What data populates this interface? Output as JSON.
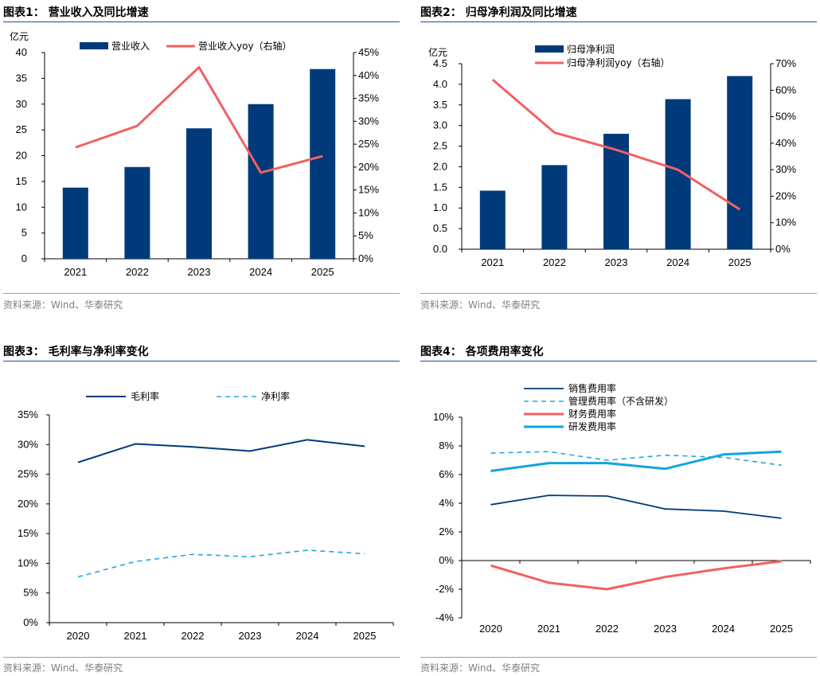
{
  "colors": {
    "navy": "#003a7a",
    "red": "#f26061",
    "light_blue": "#11a5de",
    "dashed_blue": "#20a6e0",
    "title_rule": "#1f4e8c",
    "source_rule": "#8aa3c4",
    "axis": "#000000",
    "source_text": "#7f7f7f"
  },
  "panels": [
    {
      "title": "图表1： 营业收入及同比增速",
      "source": "资料来源：Wind、华泰研究"
    },
    {
      "title": "图表2： 归母净利润及同比增速",
      "source": "资料来源：Wind、华泰研究"
    },
    {
      "title": "图表3： 毛利率与净利率变化",
      "source": "资料来源：Wind、华泰研究"
    },
    {
      "title": "图表4： 各项费用率变化",
      "source": "资料来源：Wind、华泰研究"
    }
  ],
  "chart_data": [
    {
      "type": "bar+line",
      "title": "营业收入及同比增速",
      "unit_label": "亿元",
      "categories": [
        "2021",
        "2022",
        "2023",
        "2024",
        "2025"
      ],
      "series": [
        {
          "name": "营业收入",
          "type": "bar",
          "axis": "left",
          "values": [
            13.8,
            17.8,
            25.3,
            30.0,
            36.8
          ]
        },
        {
          "name": "营业收入yoy（右轴）",
          "type": "line",
          "axis": "right",
          "values": [
            24.3,
            29.0,
            41.8,
            18.8,
            22.4
          ]
        }
      ],
      "ylim": [
        0,
        40
      ],
      "yticks": [
        "0",
        "5",
        "10",
        "15",
        "20",
        "25",
        "30",
        "35",
        "40"
      ],
      "y2lim": [
        0,
        45
      ],
      "y2ticks": [
        "0%",
        "5%",
        "10%",
        "15%",
        "20%",
        "25%",
        "30%",
        "35%",
        "40%",
        "45%"
      ],
      "legend": "top"
    },
    {
      "type": "bar+line",
      "title": "归母净利润及同比增速",
      "unit_label": "亿元",
      "categories": [
        "2021",
        "2022",
        "2023",
        "2024",
        "2025"
      ],
      "series": [
        {
          "name": "归母净利润",
          "type": "bar",
          "axis": "left",
          "values": [
            1.42,
            2.04,
            2.8,
            3.64,
            4.2
          ]
        },
        {
          "name": "归母净利润yoy（右轴）",
          "type": "line",
          "axis": "right",
          "values": [
            64.0,
            44.0,
            37.5,
            30.0,
            15.0
          ]
        }
      ],
      "ylim": [
        0,
        4.5
      ],
      "yticks": [
        "0.0",
        "0.5",
        "1.0",
        "1.5",
        "2.0",
        "2.5",
        "3.0",
        "3.5",
        "4.0",
        "4.5"
      ],
      "y2lim": [
        0,
        70
      ],
      "y2ticks": [
        "0%",
        "10%",
        "20%",
        "30%",
        "40%",
        "50%",
        "60%",
        "70%"
      ],
      "legend": "top"
    },
    {
      "type": "line",
      "title": "毛利率与净利率变化",
      "categories": [
        "2020",
        "2021",
        "2022",
        "2023",
        "2024",
        "2025"
      ],
      "series": [
        {
          "name": "毛利率",
          "style": "solid",
          "values": [
            27.0,
            30.1,
            29.6,
            28.9,
            30.8,
            29.7
          ]
        },
        {
          "name": "净利率",
          "style": "dashed",
          "values": [
            7.7,
            10.3,
            11.5,
            11.1,
            12.2,
            11.6
          ]
        }
      ],
      "ylim": [
        0,
        35
      ],
      "yticks": [
        "0%",
        "5%",
        "10%",
        "15%",
        "20%",
        "25%",
        "30%",
        "35%"
      ],
      "legend": "top"
    },
    {
      "type": "line",
      "title": "各项费用率变化",
      "categories": [
        "2020",
        "2021",
        "2022",
        "2023",
        "2024",
        "2025"
      ],
      "series": [
        {
          "name": "销售费用率",
          "style": "solid",
          "values": [
            3.9,
            4.55,
            4.5,
            3.6,
            3.45,
            2.95
          ]
        },
        {
          "name": "管理费用率（不含研发）",
          "style": "dashed",
          "values": [
            7.5,
            7.6,
            7.0,
            7.35,
            7.2,
            6.65
          ]
        },
        {
          "name": "财务费用率",
          "style": "solid",
          "values": [
            -0.35,
            -1.55,
            -2.0,
            -1.15,
            -0.55,
            -0.05
          ]
        },
        {
          "name": "研发费用率",
          "style": "solid",
          "values": [
            6.25,
            6.8,
            6.8,
            6.4,
            7.4,
            7.6
          ]
        }
      ],
      "ylim": [
        -4,
        10
      ],
      "yticks": [
        "-4%",
        "-2%",
        "0%",
        "2%",
        "4%",
        "6%",
        "8%",
        "10%"
      ],
      "legend": "top"
    }
  ]
}
